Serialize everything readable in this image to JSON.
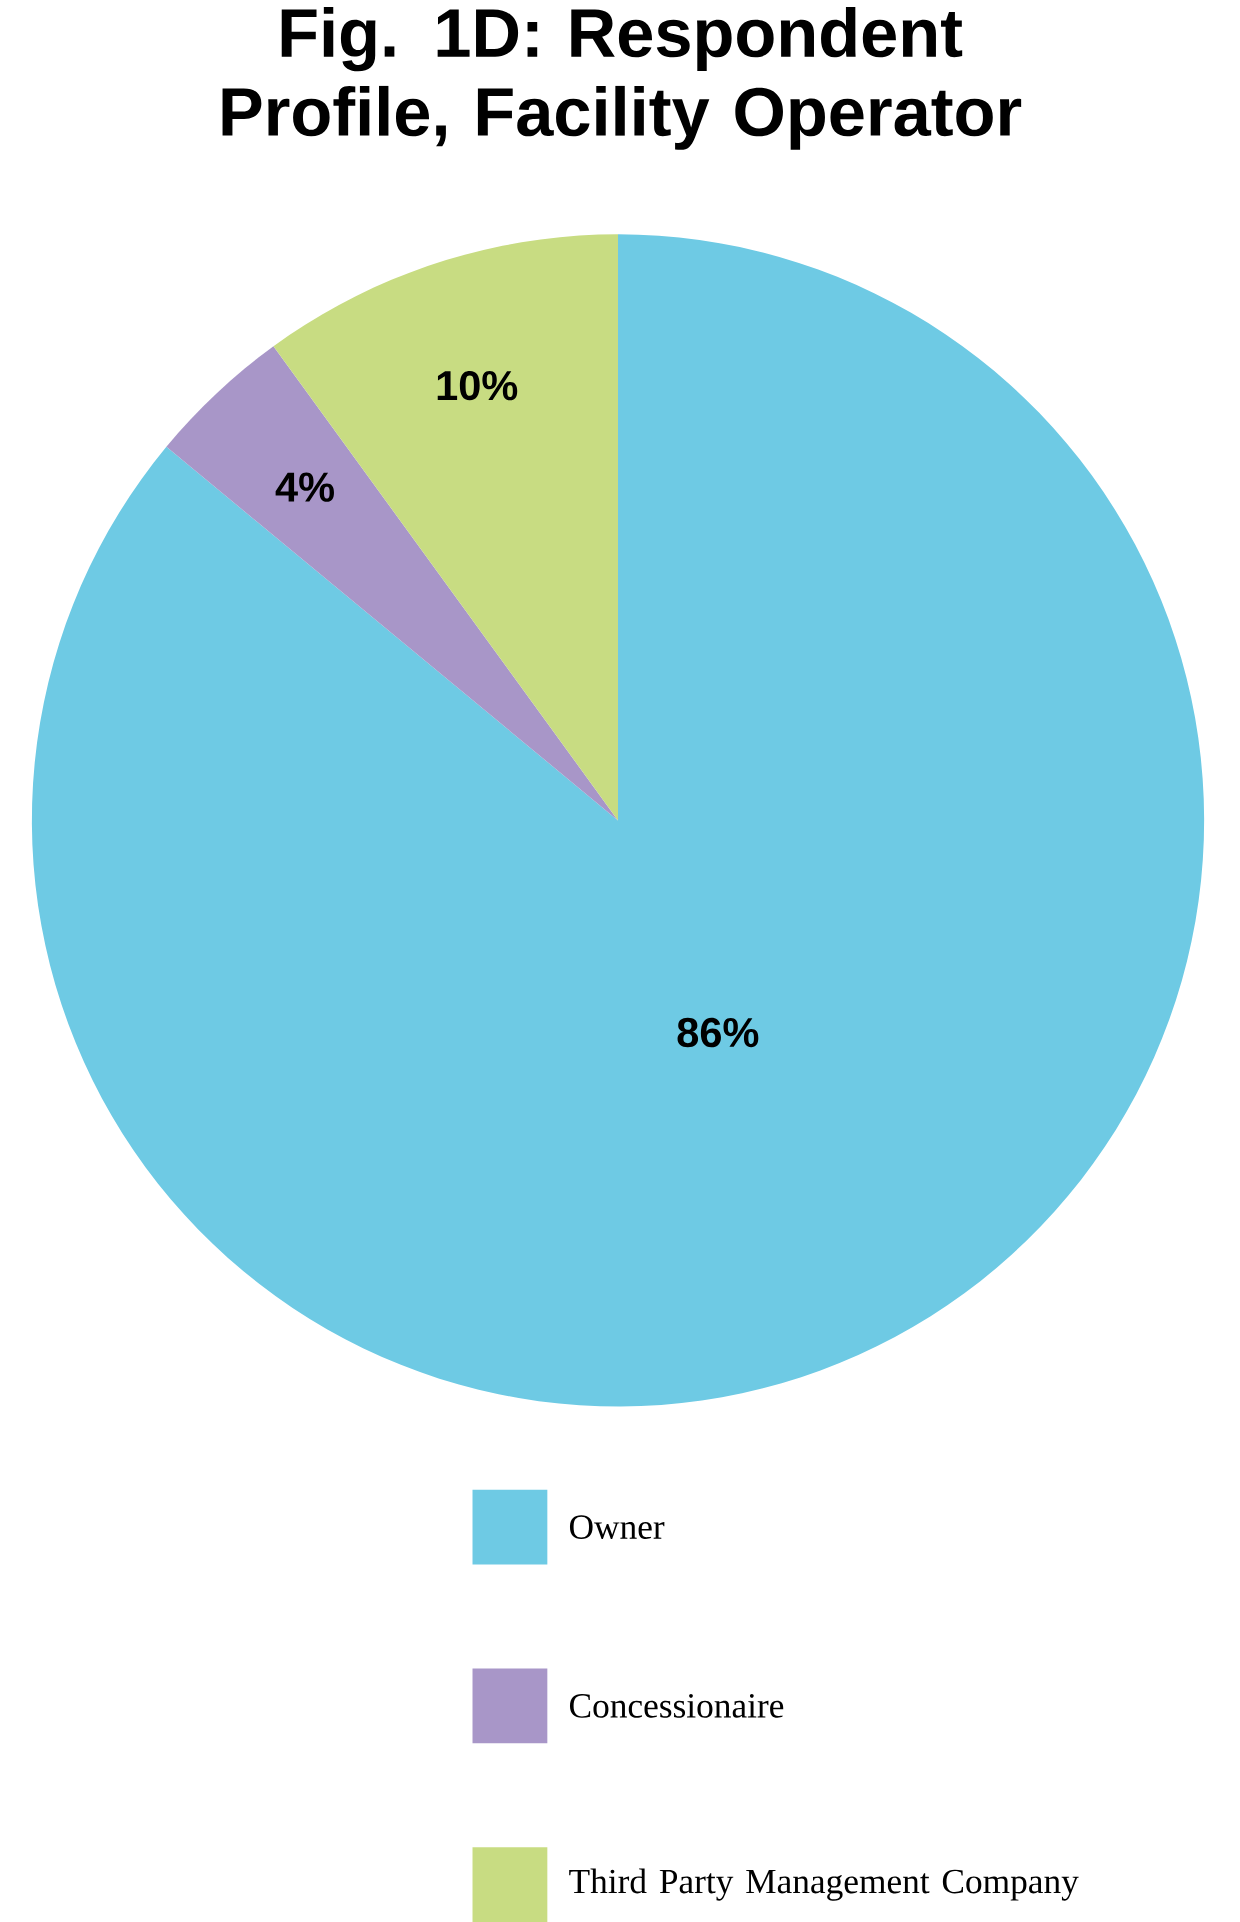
{
  "chart_data": {
    "type": "pie",
    "title": "Fig. 1D: Respondent Profile, Facility Operator",
    "categories": [
      "Owner",
      "Concessionaire",
      "Third Party Management Company"
    ],
    "values": [
      86,
      4,
      10
    ],
    "colors": [
      "#6ecae4",
      "#a896c8",
      "#c8dc82"
    ],
    "value_labels": [
      "86%",
      "4%",
      "10%"
    ],
    "legend": "bottom"
  }
}
